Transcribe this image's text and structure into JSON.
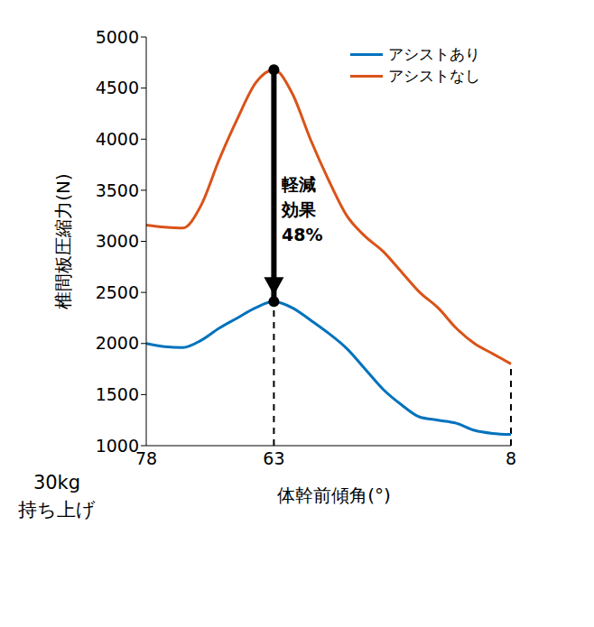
{
  "chart_data": {
    "type": "line",
    "x_label": "体幹前傾角(°)",
    "y_label": "椎間板圧縮力(N)",
    "note": [
      "30kg",
      "持ち上げ"
    ],
    "categories": [
      78,
      null,
      null,
      null,
      null,
      null,
      null,
      63,
      null,
      null,
      null,
      null,
      null,
      null,
      null,
      null,
      null,
      null,
      null,
      null,
      8
    ],
    "series": [
      {
        "name": "アシストあり",
        "color": "#0072BD",
        "values": [
          2000,
          1970,
          1960,
          2030,
          2150,
          2250,
          2350,
          2410,
          2350,
          2230,
          2100,
          1950,
          1750,
          1550,
          1400,
          1280,
          1250,
          1220,
          1150,
          1120,
          1110
        ]
      },
      {
        "name": "アシストなし",
        "color": "#D95319",
        "values": [
          3160,
          3140,
          3130,
          3350,
          3800,
          4200,
          4550,
          4680,
          4450,
          4000,
          3600,
          3250,
          3050,
          2900,
          2700,
          2500,
          2350,
          2150,
          2000,
          1900,
          1800
        ]
      }
    ],
    "ylim": [
      1000,
      5000
    ],
    "yticks": [
      1000,
      1500,
      2000,
      2500,
      3000,
      3500,
      4000,
      4500,
      5000
    ],
    "legend": "upper right",
    "annotation": {
      "text": [
        "軽減",
        "効果",
        "48%"
      ],
      "x": 63
    }
  }
}
